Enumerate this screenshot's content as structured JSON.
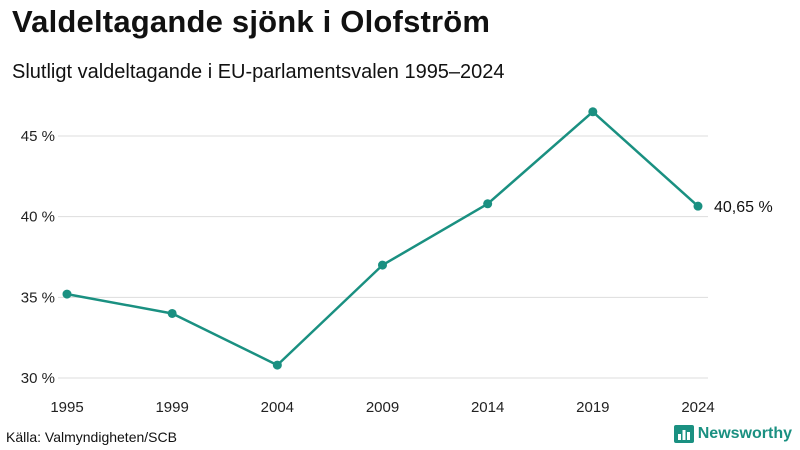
{
  "header": {
    "title": "Valdeltagande sjönk i Olofström",
    "subtitle": "Slutligt valdeltagande i EU-parlamentsvalen 1995–2024"
  },
  "footer": {
    "source": "Källa: Valmyndigheten/SCB",
    "brand": "Newsworthy",
    "brand_icon": "bar-chart-icon"
  },
  "colors": {
    "series": "#1a9081",
    "grid": "#dddddd",
    "text": "#111111"
  },
  "chart_data": {
    "type": "line",
    "title": "Valdeltagande sjönk i Olofström",
    "subtitle": "Slutligt valdeltagande i EU-parlamentsvalen 1995–2024",
    "xlabel": "",
    "ylabel": "",
    "x": [
      "1995",
      "1999",
      "2004",
      "2009",
      "2014",
      "2019",
      "2024"
    ],
    "series": [
      {
        "name": "Valdeltagande",
        "values": [
          35.2,
          34.0,
          30.8,
          37.0,
          40.8,
          46.5,
          40.65
        ]
      }
    ],
    "y_ticks": [
      30,
      35,
      40,
      45
    ],
    "y_tick_labels": [
      "30 %",
      "35 %",
      "40 %",
      "45 %"
    ],
    "ylim": [
      30,
      47
    ],
    "grid": "horizontal",
    "end_label": "40,65 %"
  }
}
